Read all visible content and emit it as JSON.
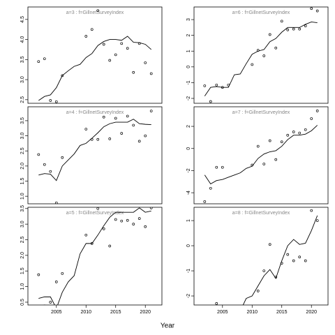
{
  "chart_data": {
    "type": "line",
    "xlabel": "Year",
    "x": [
      2002,
      2003,
      2004,
      2005,
      2006,
      2007,
      2008,
      2009,
      2010,
      2011,
      2012,
      2013,
      2014,
      2015,
      2016,
      2017,
      2018,
      2019,
      2020,
      2021
    ],
    "xlim": [
      2000.2,
      2022.8
    ],
    "xticks": [
      2005,
      2010,
      2015,
      2020
    ],
    "panels": [
      {
        "title": "a=3 : f=GillnetSurveyIndex",
        "ylim": [
          2.41,
          4.81
        ],
        "yticks": [
          2.5,
          {
            "value": 3,
            "label": "3.0"
          },
          3.5,
          {
            "value": 4,
            "label": "4.0"
          },
          4.5
        ],
        "points": [
          3.45,
          3.52,
          2.48,
          2.45,
          3.1,
          null,
          null,
          null,
          4.08,
          4.25,
          4.72,
          3.88,
          3.48,
          3.62,
          3.9,
          3.78,
          3.18,
          3.9,
          3.42,
          3.15
        ],
        "line": [
          2.48,
          2.58,
          2.62,
          2.8,
          3.1,
          3.22,
          3.33,
          3.38,
          3.55,
          3.65,
          3.85,
          3.95,
          4.0,
          4.0,
          3.98,
          4.08,
          3.93,
          3.92,
          3.88,
          3.75
        ]
      },
      {
        "title": "a=6 : f=GillnetSurveyIndex",
        "ylim": [
          -2.31,
          3.8
        ],
        "yticks": [
          -2,
          -1,
          0,
          1,
          2,
          3
        ],
        "points": [
          -1.2,
          -2.2,
          -1.15,
          -1.3,
          -1.15,
          null,
          null,
          null,
          0.15,
          1.05,
          0.7,
          2.05,
          1.2,
          2.9,
          2.35,
          2.4,
          2.4,
          2.6,
          3.7,
          3.55
        ],
        "line": [
          -1.85,
          -1.3,
          -1.25,
          -1.3,
          -1.3,
          -0.5,
          -0.45,
          0.2,
          0.8,
          1.0,
          1.1,
          1.6,
          1.8,
          2.2,
          2.5,
          2.5,
          2.5,
          2.7,
          2.85,
          2.8
        ]
      },
      {
        "title": "a=4 : f=GillnetSurveyIndex",
        "ylim": [
          0.75,
          3.96
        ],
        "yticks": [
          {
            "value": 1,
            "label": "1.0"
          },
          1.5,
          {
            "value": 2,
            "label": "2.0"
          },
          2.5,
          {
            "value": 3,
            "label": "3.0"
          },
          3.5
        ],
        "points": [
          2.38,
          2.05,
          1.82,
          0.78,
          2.28,
          null,
          null,
          null,
          3.22,
          2.88,
          2.88,
          3.62,
          2.9,
          3.58,
          3.08,
          3.65,
          3.35,
          2.82,
          3.0,
          3.82
        ],
        "line": [
          1.7,
          1.75,
          1.73,
          1.52,
          2.0,
          2.2,
          2.4,
          2.68,
          2.75,
          2.92,
          3.1,
          3.3,
          3.4,
          3.45,
          3.45,
          3.45,
          3.55,
          3.4,
          3.38,
          3.37
        ]
      },
      {
        "title": "a=7 : f=GillnetSurveyIndex",
        "ylim": [
          -5.0,
          3.77
        ],
        "yticks": [
          -4,
          -2,
          0,
          2
        ],
        "points": [
          -4.8,
          -3.6,
          -1.7,
          -1.7,
          null,
          null,
          null,
          null,
          -1.5,
          0.2,
          -1.4,
          0.7,
          -1.0,
          0.6,
          1.2,
          1.5,
          1.4,
          1.7,
          2.7,
          3.4
        ],
        "line": [
          -2.4,
          -3.2,
          -2.9,
          -2.8,
          -2.6,
          -2.4,
          -2.2,
          -1.8,
          -1.6,
          -0.9,
          -0.5,
          -0.3,
          -0.2,
          0.2,
          0.8,
          1.2,
          1.2,
          1.3,
          1.6,
          2.1
        ]
      },
      {
        "title": "a=5 : f=GillnetSurveyIndex",
        "ylim": [
          0.41,
          3.54
        ],
        "yticks": [
          0.5,
          {
            "value": 1,
            "label": "1.0"
          },
          1.5,
          {
            "value": 2,
            "label": "2.0"
          },
          2.5,
          {
            "value": 3,
            "label": "3.0"
          },
          3.5
        ],
        "points": [
          1.38,
          0.38,
          0.5,
          1.15,
          1.42,
          null,
          null,
          null,
          2.65,
          2.38,
          3.5,
          2.85,
          2.3,
          3.15,
          3.1,
          3.12,
          3.0,
          3.18,
          2.92,
          3.52
        ],
        "line": [
          0.62,
          0.67,
          0.67,
          0.3,
          0.82,
          1.15,
          1.35,
          2.05,
          2.38,
          2.38,
          2.65,
          2.95,
          3.22,
          3.38,
          3.38,
          3.38,
          3.38,
          3.52,
          3.38,
          3.42
        ]
      },
      {
        "title": "a=8 : f=GillnetSurveyIndex",
        "ylim": [
          -2.36,
          1.53
        ],
        "yticks": [
          -2,
          -1,
          0,
          1
        ],
        "points": [
          null,
          null,
          -2.3,
          null,
          null,
          null,
          null,
          null,
          null,
          -1.8,
          -1.0,
          0.05,
          -1.25,
          -0.7,
          -0.35,
          -0.6,
          -0.45,
          -0.6,
          1.4,
          1.0
        ],
        "line": [
          null,
          null,
          null,
          null,
          null,
          null,
          -2.6,
          -2.1,
          -2.0,
          -1.6,
          -1.2,
          -0.95,
          -1.3,
          -0.6,
          0.0,
          0.25,
          0.05,
          0.1,
          0.6,
          1.2
        ]
      }
    ]
  }
}
